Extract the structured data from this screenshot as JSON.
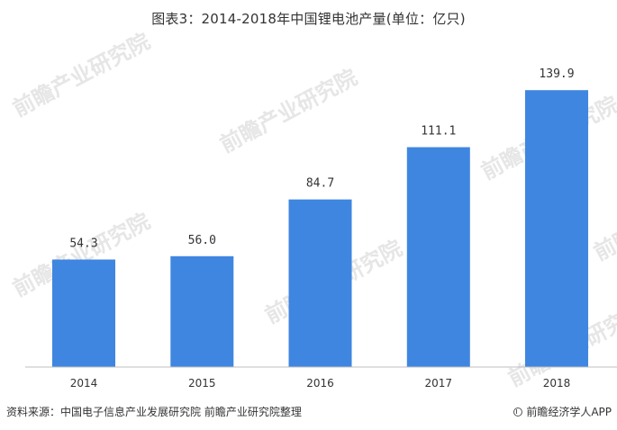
{
  "title": "图表3：2014-2018年中国锂电池产量(单位：亿只)",
  "source": "资料来源：中国电子信息产业发展研究院 前瞻产业研究院整理",
  "brand": "前瞻经济学人APP",
  "watermark": "前瞻产业研究院",
  "colors": {
    "bar": "#3f86e0",
    "axis": "#bfbfbf",
    "text": "#333333"
  },
  "chart_data": {
    "type": "bar",
    "title": "图表3：2014-2018年中国锂电池产量(单位：亿只)",
    "xlabel": "",
    "ylabel": "",
    "categories": [
      "2014",
      "2015",
      "2016",
      "2017",
      "2018"
    ],
    "values": [
      54.3,
      56.0,
      84.7,
      111.1,
      139.9
    ],
    "value_labels": [
      "54.3",
      "56.0",
      "84.7",
      "111.1",
      "139.9"
    ],
    "ylim": [
      0,
      160
    ],
    "grid": false,
    "legend": "none"
  }
}
